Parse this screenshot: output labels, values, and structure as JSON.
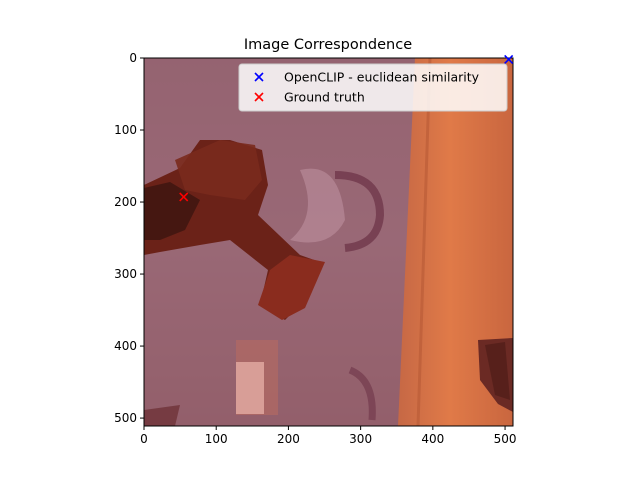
{
  "chart_data": {
    "type": "scatter",
    "title": "Image Correspondence",
    "xlabel": "",
    "ylabel": "",
    "xlim": [
      0,
      511
    ],
    "ylim": [
      511,
      0
    ],
    "xticks": [
      0,
      100,
      200,
      300,
      400,
      500
    ],
    "yticks": [
      0,
      100,
      200,
      300,
      400,
      500
    ],
    "legend_position": "top-right",
    "background": "photo of a red-tinted power drill on a patterned surface",
    "series": [
      {
        "name": "OpenCLIP - euclidean similarity",
        "marker": "x",
        "color": "#0000ff",
        "points": [
          {
            "x": 505,
            "y": 2
          }
        ]
      },
      {
        "name": "Ground truth",
        "marker": "x",
        "color": "#ff0000",
        "points": [
          {
            "x": 55,
            "y": 193
          }
        ]
      }
    ]
  }
}
